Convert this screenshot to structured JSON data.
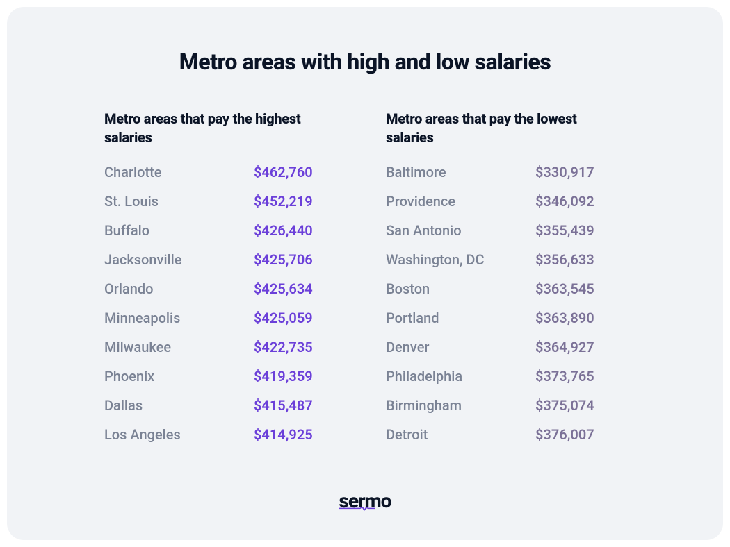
{
  "title": "Metro areas with high and low salaries",
  "columns": {
    "high": {
      "heading": "Metro areas that pay the highest salaries",
      "salary_color": "#6b3fd9",
      "rows": [
        {
          "city": "Charlotte",
          "salary": "$462,760"
        },
        {
          "city": "St. Louis",
          "salary": "$452,219"
        },
        {
          "city": "Buffalo",
          "salary": "$426,440"
        },
        {
          "city": "Jacksonville",
          "salary": "$425,706"
        },
        {
          "city": "Orlando",
          "salary": "$425,634"
        },
        {
          "city": "Minneapolis",
          "salary": "$425,059"
        },
        {
          "city": "Milwaukee",
          "salary": "$422,735"
        },
        {
          "city": "Phoenix",
          "salary": "$419,359"
        },
        {
          "city": "Dallas",
          "salary": "$415,487"
        },
        {
          "city": "Los Angeles",
          "salary": "$414,925"
        }
      ]
    },
    "low": {
      "heading": "Metro areas that pay the lowest salaries",
      "salary_color": "#7b7197",
      "rows": [
        {
          "city": "Baltimore",
          "salary": "$330,917"
        },
        {
          "city": "Providence",
          "salary": "$346,092"
        },
        {
          "city": "San Antonio",
          "salary": "$355,439"
        },
        {
          "city": "Washington, DC",
          "salary": "$356,633"
        },
        {
          "city": "Boston",
          "salary": "$363,545"
        },
        {
          "city": "Portland",
          "salary": "$363,890"
        },
        {
          "city": "Denver",
          "salary": "$364,927"
        },
        {
          "city": "Philadelphia",
          "salary": "$373,765"
        },
        {
          "city": "Birmingham",
          "salary": "$375,074"
        },
        {
          "city": "Detroit",
          "salary": "$376,007"
        }
      ]
    }
  },
  "logo": {
    "text": "sermo",
    "text_color": "#0b1426",
    "underline_gradient_start": "#6b3fd9",
    "underline_gradient_end": "#9b6be8"
  },
  "styles": {
    "background_color": "#f1f3f6",
    "title_color": "#0b1426",
    "heading_color": "#0b1426",
    "city_color": "#7a8294",
    "title_fontsize": 32,
    "heading_fontsize": 20,
    "row_fontsize": 20,
    "card_border_radius": 24
  }
}
